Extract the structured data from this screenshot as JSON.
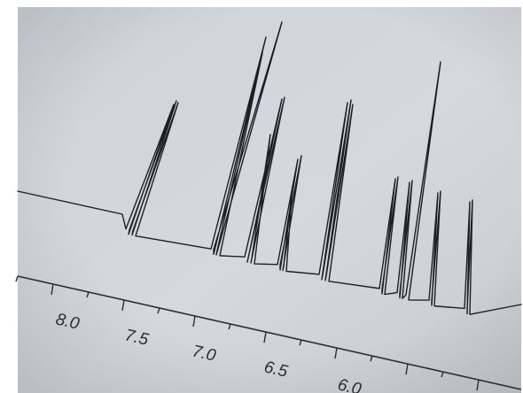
{
  "photo": {
    "subject": "printed NMR spectrum on paper",
    "paper_color": "#d3d7dc",
    "ink_color": "#1c1e22"
  },
  "axis": {
    "tick_labels": [
      "8.0",
      "7.5",
      "7.0",
      "6.5",
      "6.0"
    ]
  }
}
